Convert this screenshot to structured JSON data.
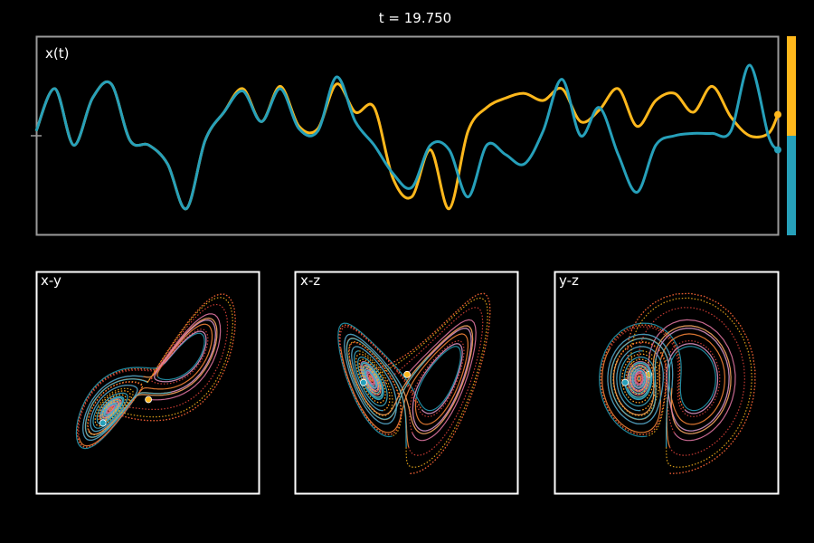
{
  "time_label": "t = 19.750",
  "colors": {
    "background": "#000000",
    "top_frame": "#9a9a9a",
    "panel_frame": "#ffffff",
    "series_a": "#ffb81c",
    "series_b": "#26a0ba",
    "orange": "#ff8a3a",
    "red": "#e8453c",
    "pink": "#e97aa8",
    "white": "#ffffff"
  },
  "chart_data": [
    {
      "type": "line",
      "panel": "x(t)",
      "title": "x(t)",
      "series": [
        {
          "id": "a",
          "color": "#ffb81c",
          "x": [
            0,
            0.5,
            1,
            1.5,
            2,
            2.5,
            3,
            3.5,
            4,
            4.5,
            5,
            5.5,
            6,
            6.5,
            7,
            7.5,
            8,
            8.5,
            9,
            9.5,
            10,
            10.5,
            11,
            11.5,
            12,
            12.5,
            13,
            13.5,
            14,
            14.5,
            15,
            15.5,
            16,
            16.5,
            17,
            17.5,
            18,
            18.5,
            19,
            19.5,
            19.75
          ],
          "y": [
            0.1,
            1.0,
            -0.2,
            0.8,
            1.1,
            -0.1,
            -0.2,
            -0.6,
            -1.55,
            -0.1,
            0.5,
            1.0,
            0.3,
            1.05,
            0.2,
            0.15,
            1.1,
            0.5,
            0.6,
            -0.9,
            -1.3,
            -0.3,
            -1.55,
            0.1,
            0.6,
            0.8,
            0.9,
            0.75,
            1.0,
            0.3,
            0.55,
            1.0,
            0.2,
            0.75,
            0.9,
            0.5,
            1.05,
            0.4,
            0.0,
            0.05,
            0.45
          ]
        },
        {
          "id": "b",
          "color": "#26a0ba",
          "x": [
            0,
            0.5,
            1,
            1.5,
            2,
            2.5,
            3,
            3.5,
            4,
            4.5,
            5,
            5.5,
            6,
            6.5,
            7,
            7.5,
            8,
            8.5,
            9,
            9.5,
            10,
            10.5,
            11,
            11.5,
            12,
            12.5,
            13,
            13.5,
            14,
            14.5,
            15,
            15.5,
            16,
            16.5,
            17,
            17.5,
            18,
            18.5,
            19,
            19.5,
            19.75
          ],
          "y": [
            0.1,
            1.0,
            -0.2,
            0.8,
            1.1,
            -0.1,
            -0.2,
            -0.6,
            -1.55,
            -0.1,
            0.5,
            0.95,
            0.3,
            1.0,
            0.15,
            0.1,
            1.25,
            0.3,
            -0.2,
            -0.8,
            -1.1,
            -0.2,
            -0.3,
            -1.3,
            -0.2,
            -0.4,
            -0.6,
            0.1,
            1.2,
            0.0,
            0.6,
            -0.4,
            -1.2,
            -0.2,
            0.0,
            0.05,
            0.05,
            0.1,
            1.5,
            0.0,
            -0.3
          ]
        }
      ]
    },
    {
      "type": "scatter",
      "panel": "x-y",
      "title": "x-y"
    },
    {
      "type": "scatter",
      "panel": "x-z",
      "title": "x-z"
    },
    {
      "type": "scatter",
      "panel": "y-z",
      "title": "y-z"
    }
  ]
}
